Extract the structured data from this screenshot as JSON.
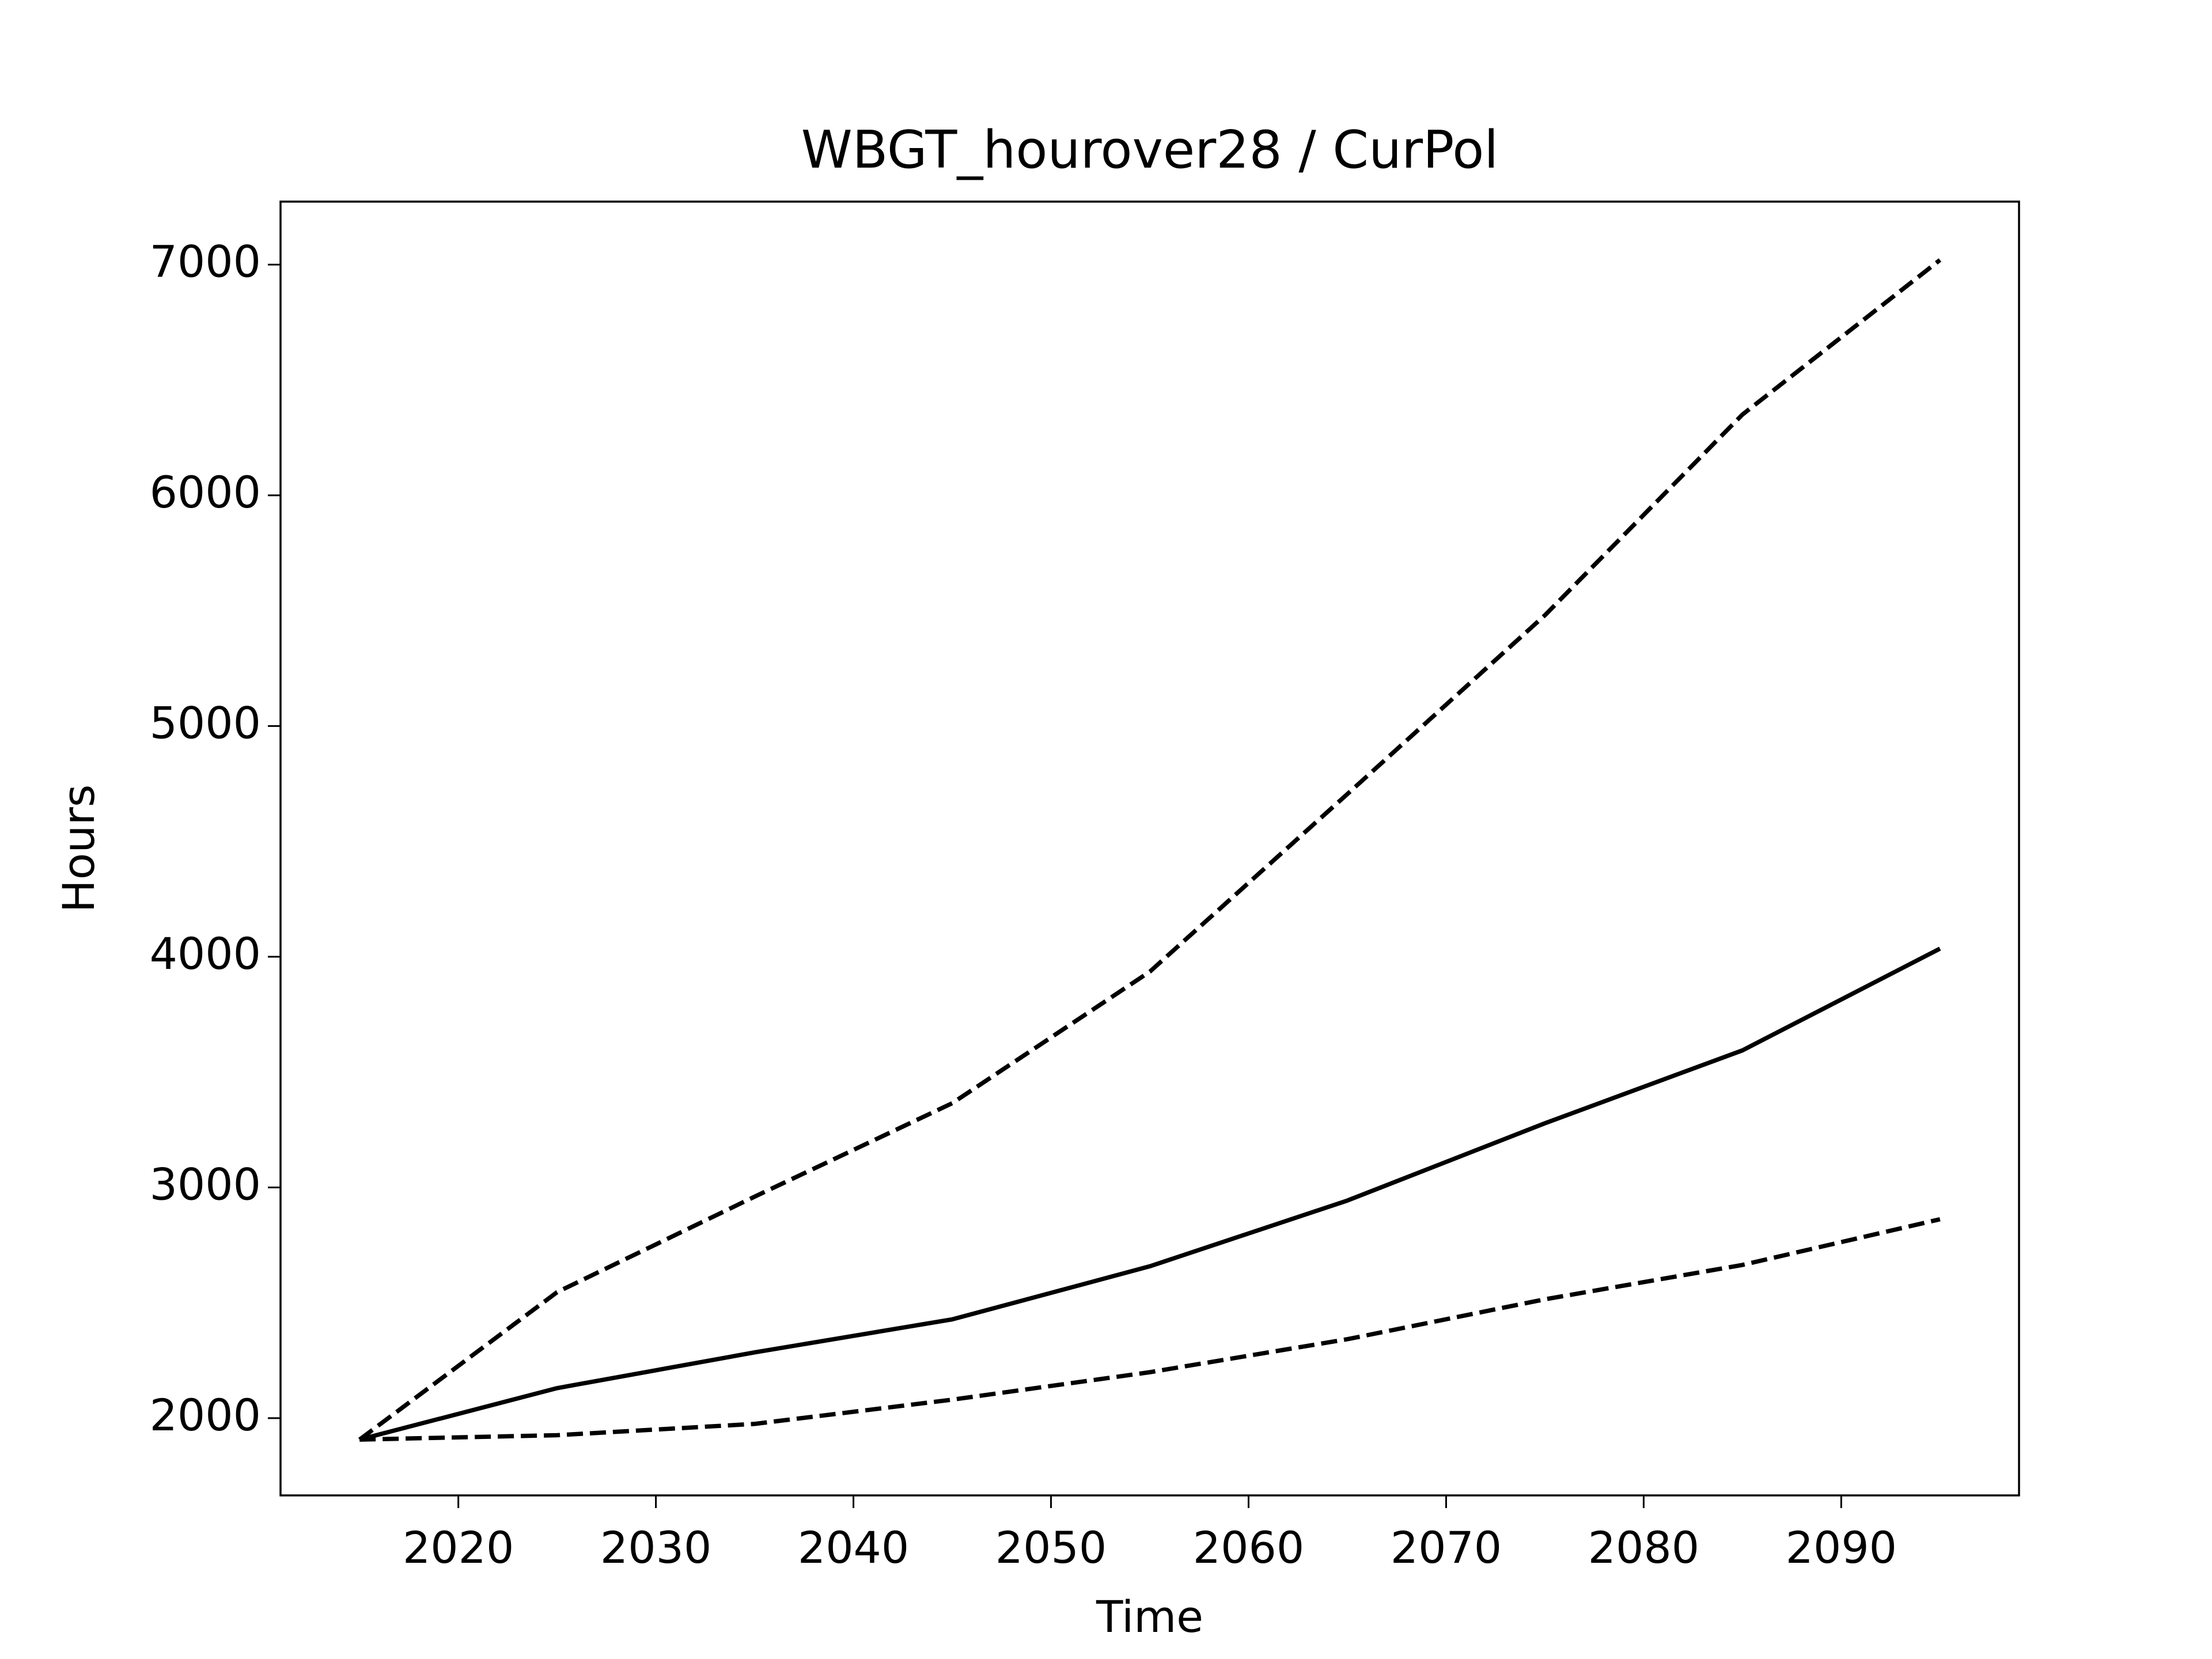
{
  "chart_data": {
    "type": "line",
    "title": "WBGT_hourover28 / CurPol",
    "x_label": "Time",
    "y_label": "Hours",
    "x": [
      2015,
      2025,
      2035,
      2045,
      2055,
      2065,
      2075,
      2085,
      2095
    ],
    "series": [
      {
        "color": "#000000",
        "linestyle": "dashed",
        "values": [
          1907,
          2546,
          2960,
          3365,
          3935,
          4705,
          5480,
          6350,
          7020
        ]
      },
      {
        "color": "#000000",
        "linestyle": "solid",
        "values": [
          1907,
          2130,
          2285,
          2428,
          2658,
          2943,
          3278,
          3594,
          4035
        ]
      },
      {
        "color": "#000000",
        "linestyle": "dashed",
        "values": [
          1907,
          1926,
          1975,
          2080,
          2199,
          2342,
          2515,
          2664,
          2862
        ]
      }
    ],
    "xlim": [
      2011,
      2099
    ],
    "xticks": [
      2020,
      2030,
      2040,
      2050,
      2060,
      2070,
      2080,
      2090
    ],
    "ylim": [
      1665,
      7273
    ],
    "yticks": [
      2000,
      3000,
      4000,
      5000,
      6000,
      7000
    ],
    "grid": false
  }
}
